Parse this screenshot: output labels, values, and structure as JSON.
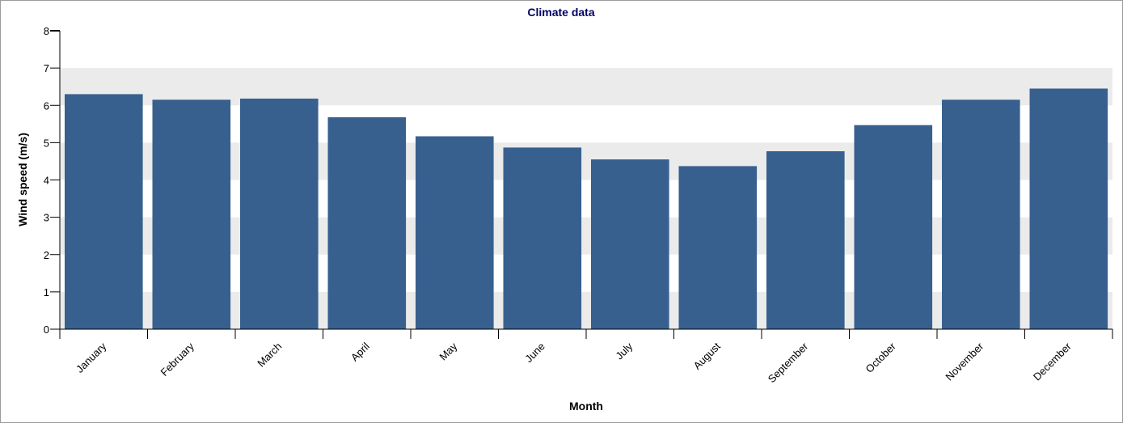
{
  "chart_data": {
    "type": "bar",
    "title": "Climate data",
    "xlabel": "Month",
    "ylabel": "Wind speed (m/s)",
    "categories": [
      "January",
      "February",
      "March",
      "April",
      "May",
      "June",
      "July",
      "August",
      "September",
      "October",
      "November",
      "December"
    ],
    "values": [
      6.3,
      6.15,
      6.18,
      5.68,
      5.17,
      4.87,
      4.55,
      4.37,
      4.77,
      5.47,
      6.15,
      6.45
    ],
    "ylim": [
      0,
      8
    ],
    "yticks": [
      0,
      1,
      2,
      3,
      4,
      5,
      6,
      7,
      8
    ],
    "grid": "alternating horizontal bands",
    "colors": {
      "bar": "#37608f",
      "band": "#ebebeb",
      "title": "#000066"
    }
  }
}
